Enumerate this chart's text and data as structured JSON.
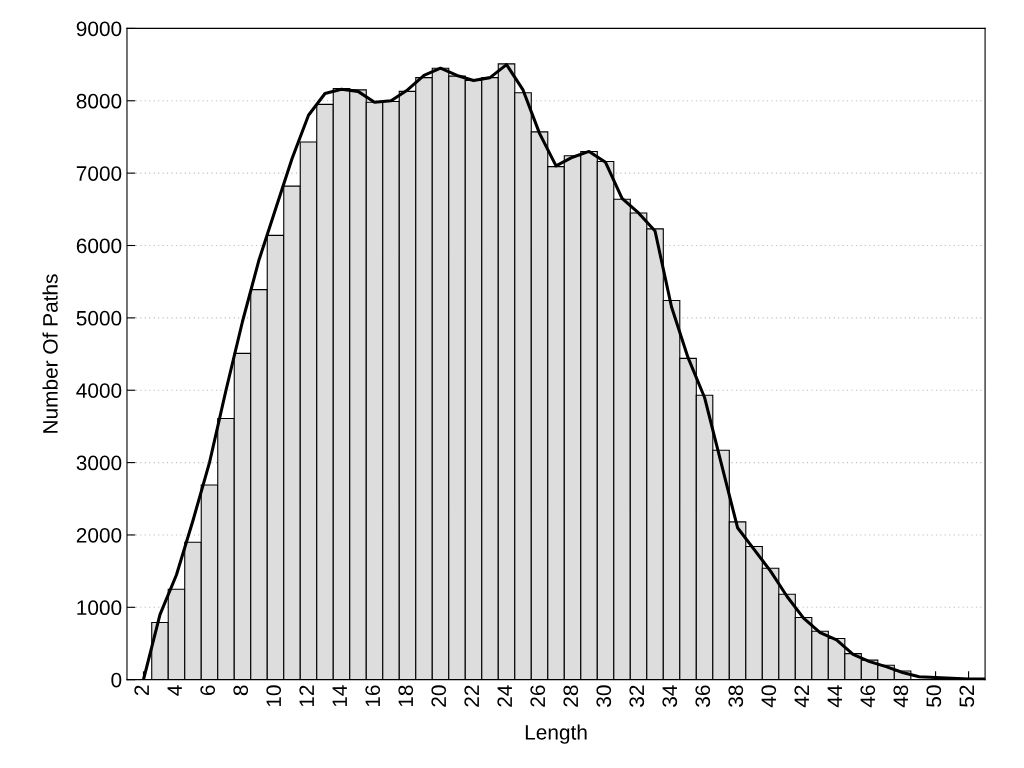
{
  "chart_data": {
    "type": "histogram",
    "xlabel": "Length",
    "ylabel": "Number Of Paths",
    "xlim": [
      1,
      53
    ],
    "xticks": [
      2,
      4,
      6,
      8,
      10,
      12,
      14,
      16,
      18,
      20,
      22,
      24,
      26,
      28,
      30,
      32,
      34,
      36,
      38,
      40,
      42,
      44,
      46,
      48,
      50,
      52
    ],
    "ylim": [
      0,
      9000
    ],
    "yticks": [
      0,
      1000,
      2000,
      3000,
      4000,
      5000,
      6000,
      7000,
      8000,
      9000
    ],
    "grid": "y",
    "series": [
      {
        "color": "#dddddd",
        "bins": [
          2.5,
          3.5,
          4.5,
          5.5,
          6.5,
          7.5,
          8.5,
          9.5,
          10.5,
          11.5,
          12.5,
          13.5,
          14.5,
          15.5,
          16.5,
          17.5,
          18.5,
          19.5,
          20.5,
          21.5,
          22.5,
          23.5,
          24.5,
          25.5,
          26.5,
          27.5,
          28.5,
          29.5,
          30.5,
          31.5,
          32.5,
          33.5,
          34.5,
          35.5,
          36.5,
          37.5,
          38.5,
          39.5,
          40.5,
          41.5,
          42.5,
          43.5,
          44.5,
          45.5,
          46.5,
          47.5,
          48.5,
          49.5,
          50.5,
          51.5,
          52.5
        ],
        "values": [
          790,
          1250,
          1900,
          2690,
          3610,
          4510,
          5390,
          6140,
          6820,
          7430,
          7950,
          8170,
          8150,
          7980,
          7990,
          8130,
          8320,
          8450,
          8340,
          8280,
          8320,
          8510,
          8110,
          7570,
          7090,
          7240,
          7300,
          7160,
          6640,
          6450,
          6230,
          5240,
          4440,
          3930,
          3170,
          2180,
          1840,
          1540,
          1180,
          860,
          670,
          570,
          360,
          270,
          200,
          120,
          null,
          null,
          null,
          null
        ]
      },
      {
        "type": "line",
        "color": "#000000",
        "x": [
          2,
          3,
          4,
          5,
          6,
          7,
          8,
          9,
          10,
          11,
          12,
          13,
          14,
          15,
          16,
          17,
          18,
          19,
          20,
          21,
          22,
          23,
          24,
          25,
          26,
          27,
          28,
          29,
          30,
          31,
          32,
          33,
          34,
          35,
          36,
          37,
          38,
          39,
          40,
          41,
          42,
          43,
          44,
          45,
          46,
          47,
          48,
          49,
          50,
          51,
          52,
          53
        ],
        "values": [
          0,
          900,
          1450,
          2200,
          3000,
          4000,
          4950,
          5800,
          6500,
          7200,
          7800,
          8100,
          8160,
          8130,
          7980,
          8000,
          8150,
          8350,
          8450,
          8350,
          8280,
          8320,
          8500,
          8150,
          7550,
          7100,
          7220,
          7300,
          7150,
          6650,
          6450,
          6200,
          5150,
          4450,
          3900,
          3000,
          2100,
          1800,
          1500,
          1150,
          850,
          650,
          550,
          350,
          250,
          180,
          100,
          40,
          30,
          20,
          10,
          10
        ]
      }
    ]
  }
}
